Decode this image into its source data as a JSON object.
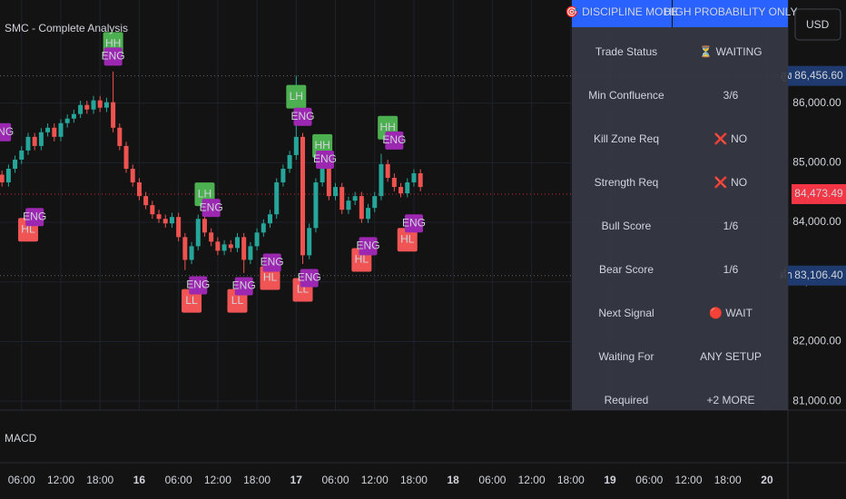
{
  "title": "SMC - Complete Analysis",
  "currency": "USD",
  "indicator_pane": "MACD",
  "chart_data": {
    "type": "candlestick",
    "up_color": "#26a69a",
    "down_color": "#ef5350",
    "grid": true,
    "x": [
      3,
      4,
      5,
      6,
      7,
      8,
      9,
      10,
      11,
      12,
      13,
      14,
      15,
      16,
      17,
      18,
      19,
      20,
      21,
      22,
      23,
      24,
      25,
      26,
      27,
      28,
      29,
      30,
      31,
      32,
      33,
      34,
      35,
      36,
      37,
      38,
      39,
      40,
      41,
      42,
      43,
      44,
      45,
      46,
      47,
      48,
      49,
      50,
      51,
      52,
      53,
      54,
      55,
      56,
      57,
      58,
      59,
      60,
      61,
      62,
      63,
      64,
      65,
      66,
      67
    ],
    "ohlc": [
      [
        84800,
        84870,
        84600,
        84670
      ],
      [
        84670,
        84970,
        84600,
        84899
      ],
      [
        84899,
        85120,
        84830,
        85052
      ],
      [
        85052,
        85280,
        84980,
        85205
      ],
      [
        85205,
        85500,
        85130,
        85434
      ],
      [
        85434,
        85500,
        85210,
        85281
      ],
      [
        85281,
        85580,
        85210,
        85511
      ],
      [
        85511,
        85660,
        85440,
        85587
      ],
      [
        85587,
        85660,
        85360,
        85434
      ],
      [
        85434,
        85730,
        85360,
        85664
      ],
      [
        85664,
        85810,
        85590,
        85740
      ],
      [
        85740,
        85890,
        85670,
        85817
      ],
      [
        85817,
        86040,
        85750,
        85969
      ],
      [
        85969,
        86040,
        85820,
        85893
      ],
      [
        85893,
        86120,
        85820,
        86046
      ],
      [
        86046,
        86120,
        85850,
        85924
      ],
      [
        85924,
        86090,
        85850,
        86015
      ],
      [
        86015,
        86530,
        85510,
        85587
      ],
      [
        85587,
        85660,
        85210,
        85281
      ],
      [
        85281,
        85350,
        84830,
        84899
      ],
      [
        84899,
        84970,
        84600,
        84670
      ],
      [
        84670,
        84740,
        84370,
        84440
      ],
      [
        84440,
        84510,
        84220,
        84288
      ],
      [
        84288,
        84360,
        84060,
        84135
      ],
      [
        84135,
        84210,
        83990,
        84058
      ],
      [
        84058,
        84130,
        83910,
        83982
      ],
      [
        83982,
        84160,
        83910,
        84089
      ],
      [
        84089,
        84160,
        83680,
        83752
      ],
      [
        83752,
        83820,
        83200,
        83370
      ],
      [
        83370,
        83670,
        83300,
        83599
      ],
      [
        83599,
        84130,
        83530,
        84058
      ],
      [
        84058,
        84130,
        83760,
        83829
      ],
      [
        83829,
        83900,
        83600,
        83676
      ],
      [
        83676,
        83750,
        83450,
        83523
      ],
      [
        83523,
        83700,
        83450,
        83630
      ],
      [
        83630,
        83700,
        83500,
        83569
      ],
      [
        83569,
        83820,
        83500,
        83752
      ],
      [
        83752,
        83820,
        83150,
        83370
      ],
      [
        83370,
        83670,
        83300,
        83599
      ],
      [
        83599,
        83900,
        83530,
        83829
      ],
      [
        83829,
        84050,
        83760,
        83982
      ],
      [
        83982,
        84210,
        83910,
        84135
      ],
      [
        84135,
        84740,
        84060,
        84670
      ],
      [
        84670,
        84970,
        84600,
        84899
      ],
      [
        84899,
        85200,
        84830,
        85128
      ],
      [
        85128,
        86460,
        85050,
        85434
      ],
      [
        85434,
        85500,
        83300,
        83447
      ],
      [
        83447,
        83980,
        83380,
        83905
      ],
      [
        83905,
        84740,
        83830,
        84670
      ],
      [
        84670,
        85100,
        84600,
        84899
      ],
      [
        84899,
        84970,
        84370,
        84440
      ],
      [
        84440,
        84660,
        84370,
        84593
      ],
      [
        84593,
        84660,
        84140,
        84211
      ],
      [
        84211,
        84430,
        84140,
        84364
      ],
      [
        84364,
        84510,
        84290,
        84440
      ],
      [
        84440,
        84510,
        83990,
        84058
      ],
      [
        84058,
        84310,
        83990,
        84242
      ],
      [
        84242,
        84510,
        84170,
        84440
      ],
      [
        84440,
        85150,
        84370,
        84976
      ],
      [
        84976,
        85050,
        84680,
        84746
      ],
      [
        84746,
        84820,
        84520,
        84593
      ],
      [
        84593,
        84660,
        84420,
        84486
      ],
      [
        84486,
        84740,
        84420,
        84670
      ],
      [
        84670,
        84890,
        84600,
        84823
      ],
      [
        84823,
        84890,
        84520,
        84593
      ]
    ],
    "xlim": [
      2.7,
      123.2
    ],
    "xticks": [
      {
        "value": 6,
        "label": "06:00"
      },
      {
        "value": 12,
        "label": "12:00"
      },
      {
        "value": 18,
        "label": "18:00"
      },
      {
        "value": 24,
        "label": "16"
      },
      {
        "value": 30,
        "label": "06:00"
      },
      {
        "value": 36,
        "label": "12:00"
      },
      {
        "value": 42,
        "label": "18:00"
      },
      {
        "value": 48,
        "label": "17"
      },
      {
        "value": 54,
        "label": "06:00"
      },
      {
        "value": 60,
        "label": "12:00"
      },
      {
        "value": 66,
        "label": "18:00"
      },
      {
        "value": 72,
        "label": "18"
      },
      {
        "value": 78,
        "label": "06:00"
      },
      {
        "value": 84,
        "label": "12:00"
      },
      {
        "value": 90,
        "label": "18:00"
      },
      {
        "value": 96,
        "label": "19"
      },
      {
        "value": 102,
        "label": "06:00"
      },
      {
        "value": 108,
        "label": "12:00"
      },
      {
        "value": 114,
        "label": "18:00"
      },
      {
        "value": 120,
        "label": "20"
      }
    ],
    "ylim": [
      80850,
      87730
    ],
    "yticks": [
      {
        "value": 81000,
        "label": "81,000.00"
      },
      {
        "value": 82000,
        "label": "82,000.00"
      },
      {
        "value": 83000,
        "label": "83,000.00"
      },
      {
        "value": 84000,
        "label": "84,000.00"
      },
      {
        "value": 85000,
        "label": "85,000.00"
      },
      {
        "value": 86000,
        "label": "86,000.00"
      }
    ],
    "price_lines": [
      {
        "value": 86456.6,
        "label": "86,456.60",
        "tag": "สูง",
        "color": "#1e3a6e",
        "line": "#787b86"
      },
      {
        "value": 84473.49,
        "label": "84,473.49",
        "color": "#f23645",
        "line": "#f23645"
      },
      {
        "value": 83106.4,
        "label": "83,106.40",
        "tag": "ต่ำ",
        "color": "#1e3a6e",
        "line": "#787b86"
      }
    ],
    "annotations": [
      {
        "text": "HH",
        "x": 20,
        "y": 86994,
        "color": "#4caf50"
      },
      {
        "text": "ENG",
        "x": 20,
        "y": 86780,
        "color": "#9c27b0"
      },
      {
        "text": "ENG",
        "x": 3,
        "y": 85511,
        "color": "#9c27b0"
      },
      {
        "text": "HL",
        "x": 7,
        "y": 83875,
        "color": "#f05454"
      },
      {
        "text": "ENG",
        "x": 8,
        "y": 84089,
        "color": "#9c27b0"
      },
      {
        "text": "LH",
        "x": 34,
        "y": 84471,
        "color": "#4caf50"
      },
      {
        "text": "ENG",
        "x": 35,
        "y": 84242,
        "color": "#9c27b0"
      },
      {
        "text": "LL",
        "x": 32,
        "y": 82682,
        "color": "#f05454"
      },
      {
        "text": "ENG",
        "x": 33,
        "y": 82942,
        "color": "#9c27b0"
      },
      {
        "text": "LL",
        "x": 39,
        "y": 82682,
        "color": "#f05454"
      },
      {
        "text": "ENG",
        "x": 40,
        "y": 82927,
        "color": "#9c27b0"
      },
      {
        "text": "HL",
        "x": 44,
        "y": 83064,
        "color": "#f05454"
      },
      {
        "text": "ENG",
        "x": 44.3,
        "y": 83324,
        "color": "#9c27b0"
      },
      {
        "text": "LH",
        "x": 48,
        "y": 86107,
        "color": "#4caf50"
      },
      {
        "text": "ENG",
        "x": 49,
        "y": 85771,
        "color": "#9c27b0"
      },
      {
        "text": "LL",
        "x": 49,
        "y": 82866,
        "color": "#f05454"
      },
      {
        "text": "ENG",
        "x": 50,
        "y": 83064,
        "color": "#9c27b0"
      },
      {
        "text": "HH",
        "x": 52,
        "y": 85281,
        "color": "#4caf50"
      },
      {
        "text": "ENG",
        "x": 52.4,
        "y": 85052,
        "color": "#9c27b0"
      },
      {
        "text": "HL",
        "x": 58,
        "y": 83370,
        "color": "#f05454"
      },
      {
        "text": "ENG",
        "x": 59,
        "y": 83599,
        "color": "#9c27b0"
      },
      {
        "text": "HH",
        "x": 62,
        "y": 85587,
        "color": "#4caf50"
      },
      {
        "text": "ENG",
        "x": 63,
        "y": 85373,
        "color": "#9c27b0"
      },
      {
        "text": "HL",
        "x": 65,
        "y": 83707,
        "color": "#f05454"
      },
      {
        "text": "ENG",
        "x": 66,
        "y": 83982,
        "color": "#9c27b0"
      }
    ]
  },
  "panel": {
    "header": [
      "🎯 DISCIPLINE MODE",
      "HIGH PROBABILITY ONLY"
    ],
    "rows": [
      {
        "label": "Trade Status",
        "value": "⏳ WAITING",
        "color": "#ff9800"
      },
      {
        "label": "Min Confluence",
        "value": "3/6",
        "color": "#ffeb3b"
      },
      {
        "label": "Kill Zone Req",
        "value": "❌ NO",
        "color": "#ffffff"
      },
      {
        "label": "Strength Req",
        "value": "❌ NO",
        "color": "#ffffff"
      },
      {
        "label": "Bull Score",
        "value": "1/6",
        "color": "#f05454"
      },
      {
        "label": "Bear Score",
        "value": "1/6",
        "color": "#f05454"
      },
      {
        "label": "Next Signal",
        "value": "🔴 WAIT",
        "color": "#f05454"
      },
      {
        "label": "Waiting For",
        "value": "ANY SETUP",
        "color": "#ff9800"
      },
      {
        "label": "Required",
        "value": "+2 MORE",
        "color": "#f05454"
      }
    ]
  }
}
